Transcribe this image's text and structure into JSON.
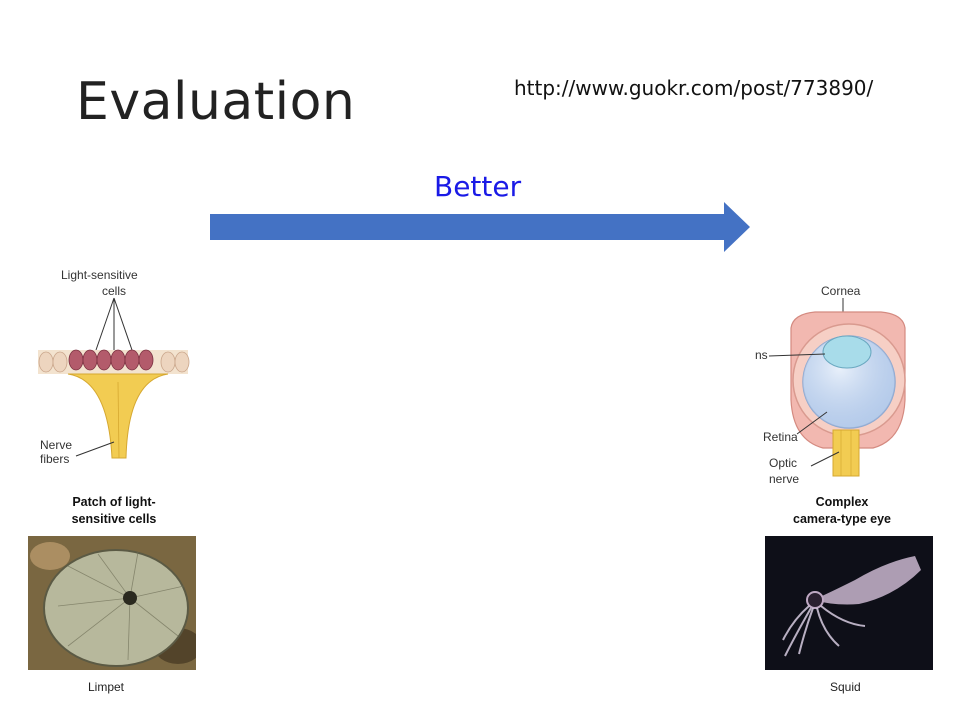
{
  "slide": {
    "title": "Evaluation",
    "source_url": "http://www.guokr.com/post/773890/",
    "arrow_label": "Better",
    "colors": {
      "arrow": "#4472c4",
      "arrow_label": "#1a1ae6"
    }
  },
  "left_panel": {
    "labels": {
      "cells_line1": "Light-sensitive",
      "cells_line2": "cells",
      "nerve_line1": "Nerve",
      "nerve_line2": "fibers"
    },
    "caption_line1": "Patch of light-",
    "caption_line2": "sensitive cells",
    "photo_icon": "limpet-photo",
    "animal": "Limpet"
  },
  "right_panel": {
    "labels": {
      "cornea": "Cornea",
      "lens": "ns",
      "retina": "Retina",
      "optic_line1": "Optic",
      "optic_line2": "nerve"
    },
    "caption_line1": "Complex",
    "caption_line2": "camera-type eye",
    "photo_icon": "squid-photo",
    "animal": "Squid"
  }
}
